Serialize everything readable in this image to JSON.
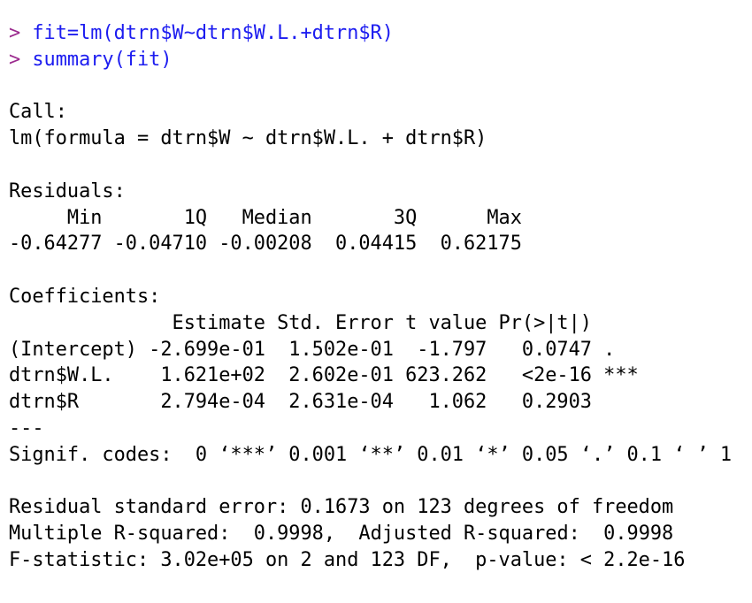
{
  "colors": {
    "prompt": "#9b2a8e",
    "command": "#1c1cf0",
    "output": "#000000"
  },
  "commands": [
    {
      "prompt": "> ",
      "text": "fit=lm(dtrn$W~dtrn$W.L.+dtrn$R)"
    },
    {
      "prompt": "> ",
      "text": "summary(fit)"
    }
  ],
  "output": {
    "call_label": "Call:",
    "call": "lm(formula = dtrn$W ~ dtrn$W.L. + dtrn$R)",
    "residuals_label": "Residuals:",
    "residuals_header": "     Min       1Q   Median       3Q      Max ",
    "residuals_values": "-0.64277 -0.04710 -0.00208  0.04415  0.62175 ",
    "coefficients_label": "Coefficients:",
    "coefficients_header": "              Estimate Std. Error t value Pr(>|t|)    ",
    "coefficients_rows": [
      "(Intercept) -2.699e-01  1.502e-01  -1.797   0.0747 .  ",
      "dtrn$W.L.    1.621e+02  2.602e-01 623.262   <2e-16 ***",
      "dtrn$R       2.794e-04  2.631e-04   1.062   0.2903    "
    ],
    "separator": "---",
    "signif_codes": "Signif. codes:  0 ‘***’ 0.001 ‘**’ 0.01 ‘*’ 0.05 ‘.’ 0.1 ‘ ’ 1",
    "residual_se": "Residual standard error: 0.1673 on 123 degrees of freedom",
    "r_squared": "Multiple R-squared:  0.9998,\tAdjusted R-squared:  0.9998 ",
    "f_statistic": "F-statistic: 3.02e+05 on 2 and 123 DF,  p-value: < 2.2e-16"
  }
}
